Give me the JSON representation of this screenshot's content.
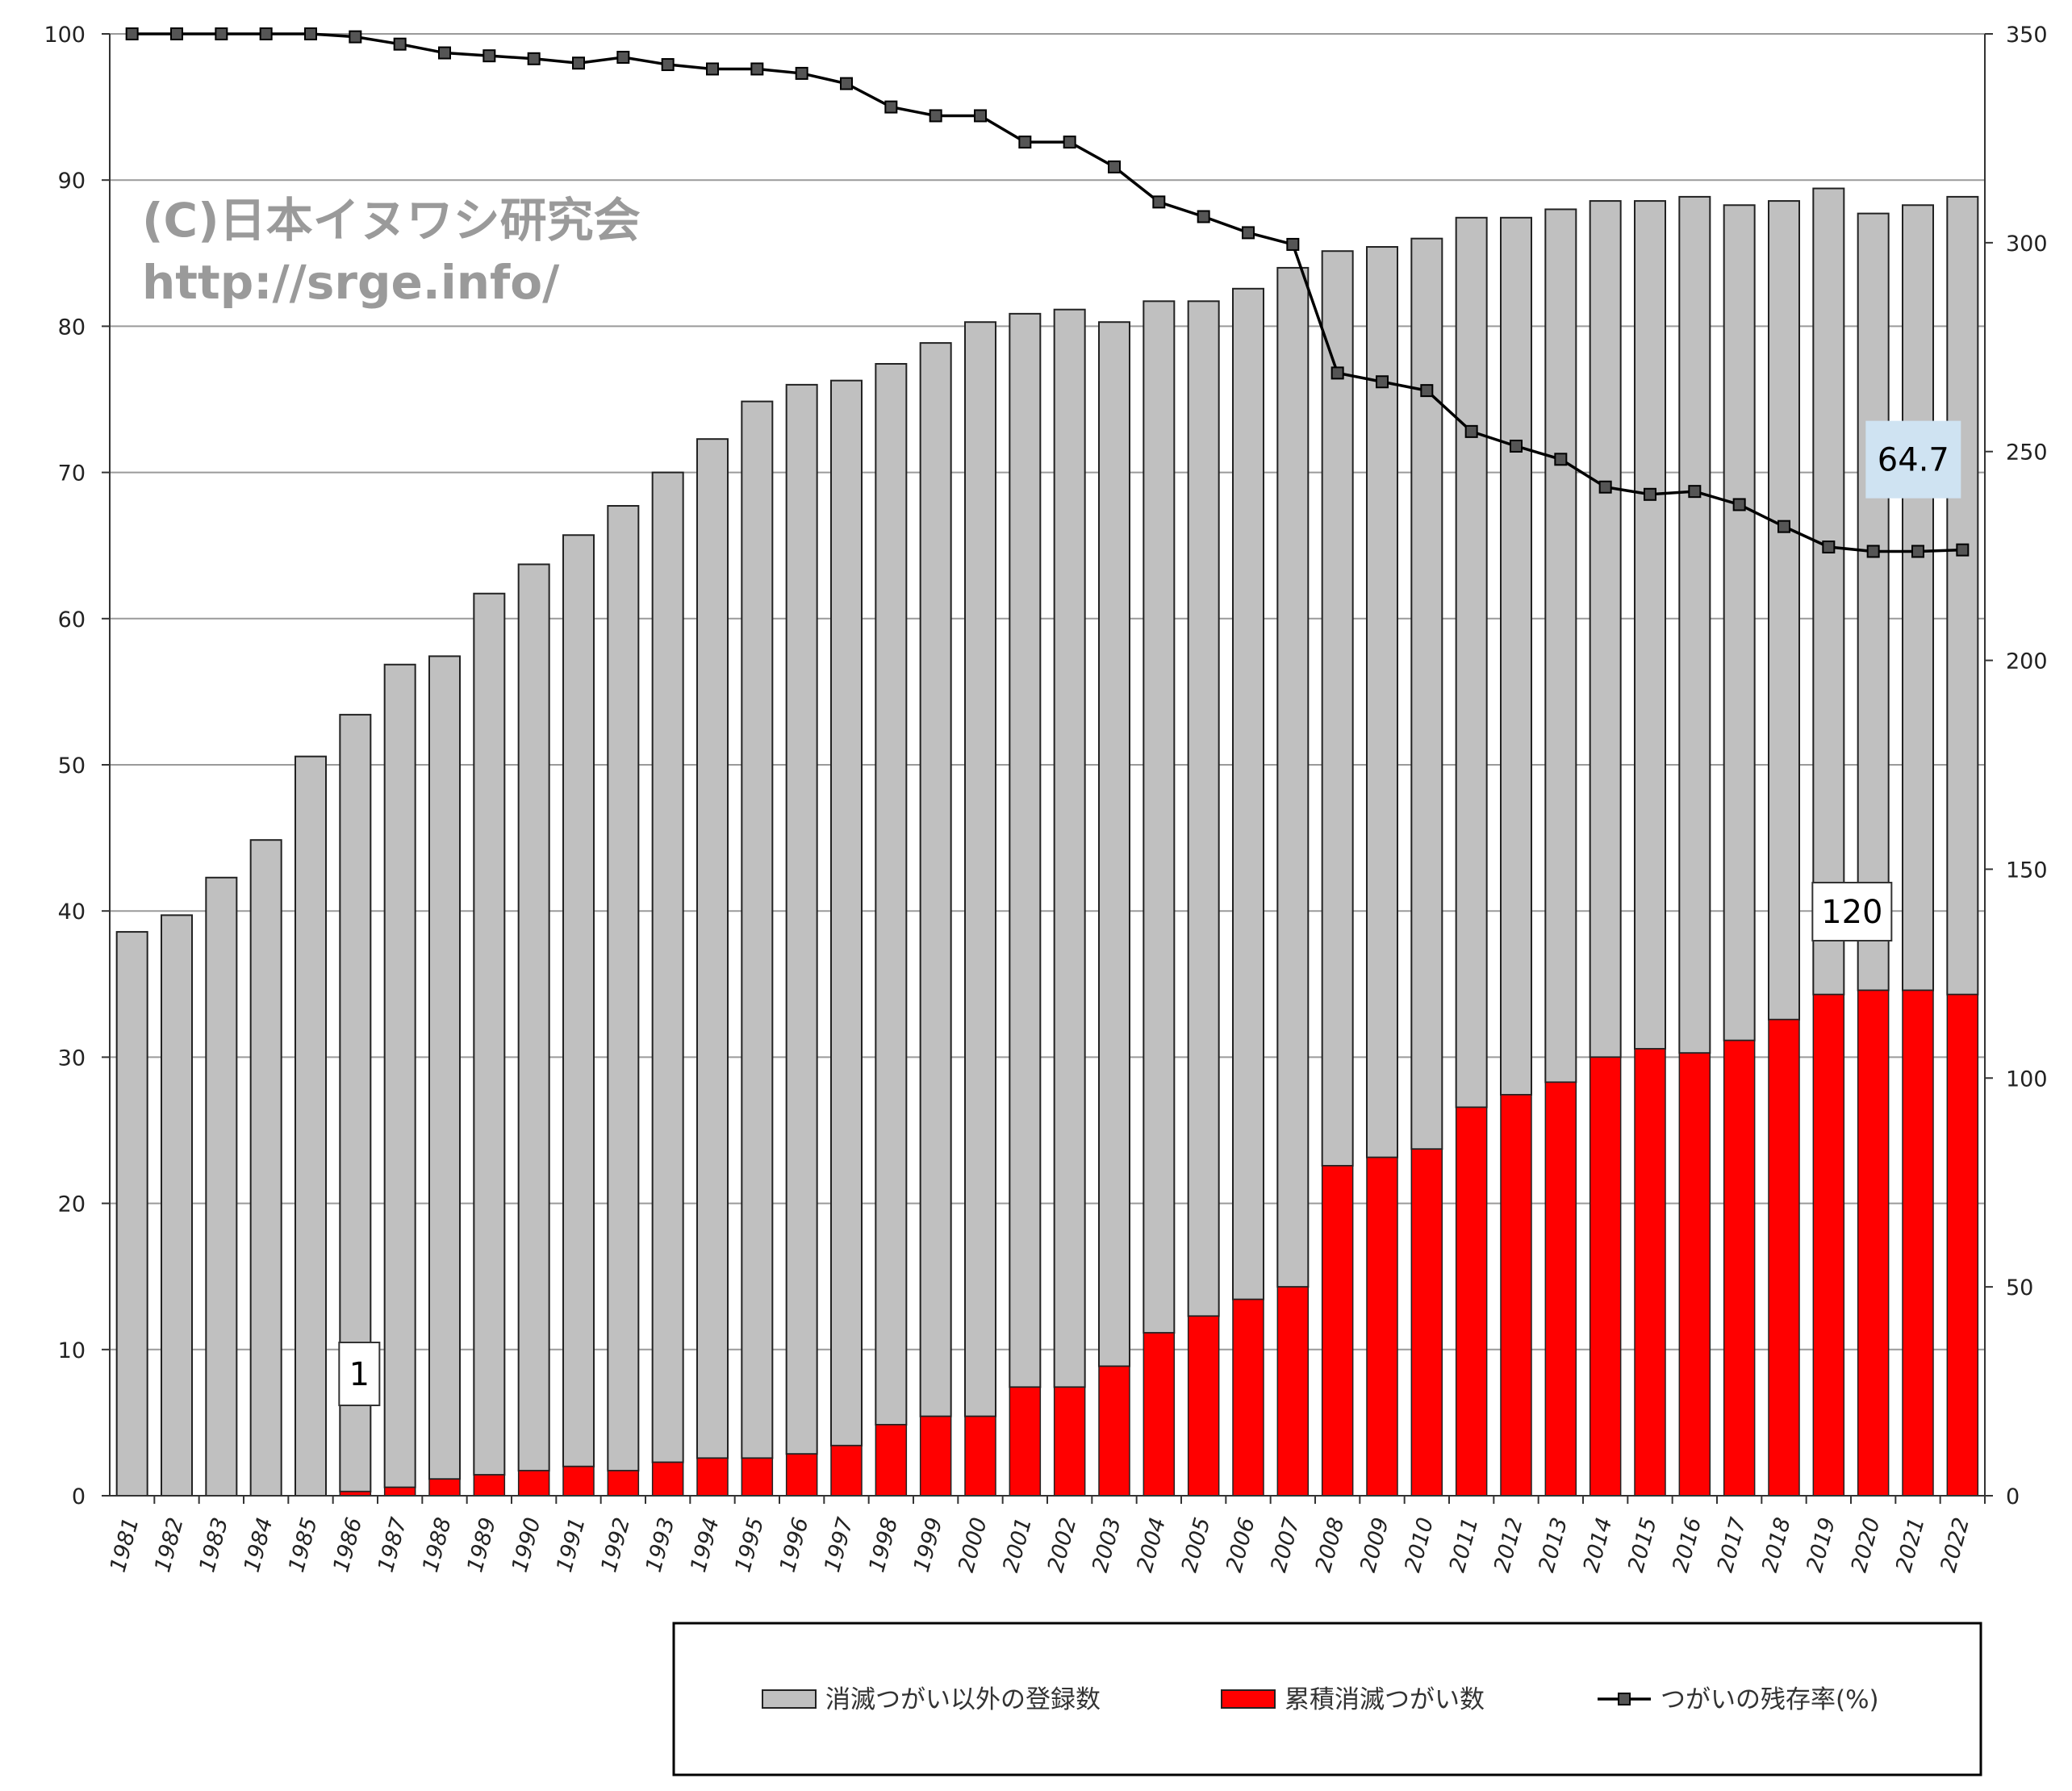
{
  "watermark": {
    "line1": "(C)日本イヌワシ研究会",
    "line2": "http://srge.info/"
  },
  "chart_data": {
    "type": "bar",
    "stacked": true,
    "categories": [
      "1981",
      "1982",
      "1983",
      "1984",
      "1985",
      "1986",
      "1987",
      "1988",
      "1989",
      "1990",
      "1991",
      "1992",
      "1993",
      "1994",
      "1995",
      "1996",
      "1997",
      "1998",
      "1999",
      "2000",
      "2001",
      "2002",
      "2003",
      "2004",
      "2005",
      "2006",
      "2007",
      "2008",
      "2009",
      "2010",
      "2011",
      "2012",
      "2013",
      "2014",
      "2015",
      "2016",
      "2017",
      "2018",
      "2019",
      "2020",
      "2021",
      "2022"
    ],
    "series": [
      {
        "name": "消滅つがい以外の登録数",
        "axis": "right",
        "type": "bar",
        "color": "#c0c0c0",
        "values": [
          135,
          139,
          148,
          157,
          177,
          186,
          197,
          197,
          211,
          217,
          223,
          231,
          237,
          244,
          253,
          256,
          255,
          254,
          257,
          262,
          257,
          258,
          250,
          247,
          243,
          242,
          244,
          219,
          218,
          218,
          213,
          210,
          209,
          205,
          203,
          205,
          200,
          196,
          193,
          186,
          188,
          191
        ]
      },
      {
        "name": "累積消滅つがい数",
        "axis": "right",
        "type": "bar",
        "color": "#ff0000",
        "values": [
          0,
          0,
          0,
          0,
          0,
          1,
          2,
          4,
          5,
          6,
          7,
          6,
          8,
          9,
          9,
          10,
          12,
          17,
          19,
          19,
          26,
          26,
          31,
          39,
          43,
          47,
          50,
          79,
          81,
          83,
          93,
          96,
          99,
          105,
          107,
          106,
          109,
          114,
          120,
          121,
          121,
          120
        ]
      },
      {
        "name": "つがいの残存率(%)",
        "axis": "left",
        "type": "line",
        "color": "#000000",
        "values": [
          100,
          100,
          100,
          100,
          100,
          99.8,
          99.3,
          98.7,
          98.5,
          98.3,
          98.0,
          98.4,
          97.9,
          97.6,
          97.6,
          97.3,
          96.6,
          95.0,
          94.4,
          94.4,
          92.6,
          92.6,
          90.9,
          88.5,
          87.5,
          86.4,
          85.6,
          76.8,
          76.2,
          75.6,
          72.8,
          71.8,
          70.9,
          69.0,
          68.5,
          68.7,
          67.8,
          66.3,
          64.9,
          64.6,
          64.6,
          64.7
        ]
      }
    ],
    "y_left": {
      "min": 0,
      "max": 100,
      "ticks": [
        0,
        10,
        20,
        30,
        40,
        50,
        60,
        70,
        80,
        90,
        100
      ]
    },
    "y_right": {
      "min": 0,
      "max": 350,
      "ticks": [
        0,
        50,
        100,
        150,
        200,
        250,
        300,
        350
      ]
    },
    "annotations": [
      {
        "text": "1",
        "series": "累積消滅つがい数",
        "category": "1986"
      },
      {
        "text": "120",
        "series": "累積消滅つがい数",
        "category": "2019"
      },
      {
        "text": "64.7",
        "series": "つがいの残存率(%)",
        "category": "2022"
      }
    ],
    "grid": true,
    "legend_position": "bottom-right"
  }
}
